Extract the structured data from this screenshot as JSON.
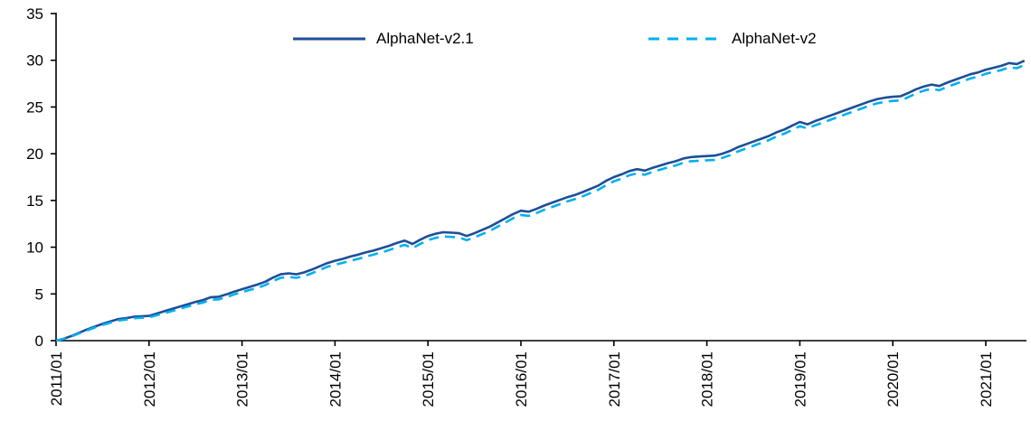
{
  "chart_data": {
    "type": "line",
    "title": "",
    "xlabel": "",
    "ylabel": "",
    "ylim": [
      0,
      35
    ],
    "y_ticks": [
      0,
      5,
      10,
      15,
      20,
      25,
      30,
      35
    ],
    "grid": false,
    "legend_position": "top-center",
    "axis_color": "#000000",
    "background_color": "#ffffff",
    "x_tick_labels": [
      "2011/01",
      "2012/01",
      "2013/01",
      "2014/01",
      "2015/01",
      "2016/01",
      "2017/01",
      "2018/01",
      "2019/01",
      "2020/01",
      "2021/01"
    ],
    "x_tick_month_indexes": [
      0,
      12,
      24,
      36,
      48,
      60,
      72,
      84,
      96,
      108,
      120
    ],
    "x_range_note": "monthly points 2011/01 through 2021/06",
    "months_total": 126,
    "series": [
      {
        "name": "AlphaNet-v2.1",
        "color": "#1F4E96",
        "style": "solid",
        "values": [
          0.0,
          0.2,
          0.5,
          0.85,
          1.2,
          1.5,
          1.8,
          2.05,
          2.3,
          2.4,
          2.55,
          2.6,
          2.65,
          2.9,
          3.15,
          3.4,
          3.65,
          3.9,
          4.15,
          4.35,
          4.65,
          4.7,
          4.95,
          5.25,
          5.5,
          5.75,
          6.0,
          6.3,
          6.75,
          7.1,
          7.2,
          7.1,
          7.3,
          7.6,
          7.95,
          8.3,
          8.55,
          8.75,
          9.0,
          9.2,
          9.45,
          9.65,
          9.9,
          10.15,
          10.45,
          10.7,
          10.35,
          10.8,
          11.2,
          11.45,
          11.6,
          11.55,
          11.5,
          11.2,
          11.5,
          11.85,
          12.2,
          12.65,
          13.1,
          13.55,
          13.9,
          13.8,
          14.1,
          14.45,
          14.75,
          15.05,
          15.35,
          15.6,
          15.9,
          16.25,
          16.6,
          17.1,
          17.5,
          17.8,
          18.15,
          18.35,
          18.2,
          18.5,
          18.75,
          19.0,
          19.2,
          19.5,
          19.65,
          19.7,
          19.75,
          19.8,
          20.0,
          20.3,
          20.7,
          21.0,
          21.3,
          21.6,
          21.9,
          22.3,
          22.6,
          23.0,
          23.4,
          23.15,
          23.5,
          23.8,
          24.1,
          24.4,
          24.7,
          25.0,
          25.3,
          25.6,
          25.85,
          26.0,
          26.1,
          26.15,
          26.5,
          26.9,
          27.2,
          27.4,
          27.25,
          27.6,
          27.9,
          28.2,
          28.5,
          28.7,
          29.0,
          29.2,
          29.4,
          29.7,
          29.6,
          29.95
        ]
      },
      {
        "name": "AlphaNet-v2",
        "color": "#00B0F0",
        "style": "dashed",
        "values": [
          0.0,
          0.18,
          0.45,
          0.78,
          1.1,
          1.4,
          1.68,
          1.92,
          2.15,
          2.25,
          2.4,
          2.45,
          2.48,
          2.72,
          2.95,
          3.18,
          3.42,
          3.65,
          3.9,
          4.08,
          4.38,
          4.42,
          4.65,
          4.95,
          5.18,
          5.42,
          5.65,
          5.95,
          6.38,
          6.72,
          6.82,
          6.72,
          6.9,
          7.2,
          7.55,
          7.9,
          8.12,
          8.32,
          8.55,
          8.75,
          9.0,
          9.2,
          9.45,
          9.7,
          10.0,
          10.25,
          9.9,
          10.35,
          10.75,
          11.0,
          11.15,
          11.1,
          11.05,
          10.75,
          11.05,
          11.4,
          11.75,
          12.2,
          12.65,
          13.1,
          13.45,
          13.35,
          13.65,
          14.0,
          14.3,
          14.6,
          14.9,
          15.15,
          15.45,
          15.8,
          16.15,
          16.65,
          17.05,
          17.35,
          17.7,
          17.9,
          17.75,
          18.05,
          18.3,
          18.55,
          18.75,
          19.05,
          19.2,
          19.25,
          19.3,
          19.35,
          19.55,
          19.85,
          20.25,
          20.55,
          20.85,
          21.15,
          21.45,
          21.85,
          22.15,
          22.55,
          22.95,
          22.7,
          23.05,
          23.35,
          23.65,
          23.95,
          24.25,
          24.55,
          24.85,
          25.15,
          25.4,
          25.55,
          25.65,
          25.7,
          26.05,
          26.45,
          26.75,
          26.95,
          26.8,
          27.15,
          27.45,
          27.75,
          28.05,
          28.25,
          28.55,
          28.75,
          28.95,
          29.25,
          29.15,
          29.5
        ]
      }
    ]
  }
}
